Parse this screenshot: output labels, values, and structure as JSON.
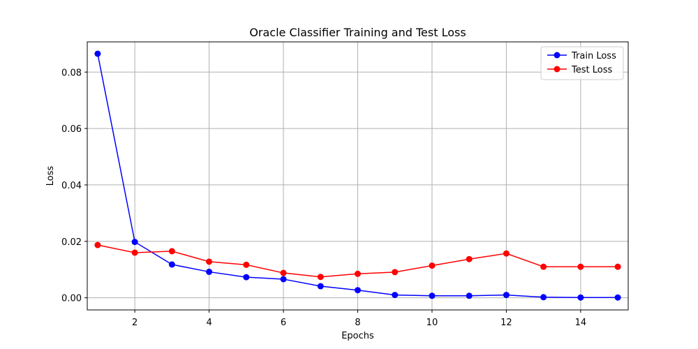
{
  "chart_data": {
    "type": "line",
    "title": "Oracle Classifier Training and Test Loss",
    "xlabel": "Epochs",
    "ylabel": "Loss",
    "x": [
      1,
      2,
      3,
      4,
      5,
      6,
      7,
      8,
      9,
      10,
      11,
      12,
      13,
      14,
      15
    ],
    "xlim": [
      0.72,
      15.28
    ],
    "ylim": [
      -0.0043,
      0.0907
    ],
    "xticks": [
      2,
      4,
      6,
      8,
      10,
      12,
      14
    ],
    "xtick_labels": [
      "2",
      "4",
      "6",
      "8",
      "10",
      "12",
      "14"
    ],
    "yticks": [
      0.0,
      0.02,
      0.04,
      0.06,
      0.08
    ],
    "ytick_labels": [
      "0.00",
      "0.02",
      "0.04",
      "0.06",
      "0.08"
    ],
    "grid": true,
    "legend_position": "top-right",
    "series": [
      {
        "name": "Train Loss",
        "color": "#0000ff",
        "marker": "circle",
        "values": [
          0.0865,
          0.0198,
          0.0118,
          0.0092,
          0.0073,
          0.0066,
          0.0041,
          0.0027,
          0.001,
          0.0007,
          0.0007,
          0.001,
          0.0002,
          0.0001,
          0.0001
        ]
      },
      {
        "name": "Test Loss",
        "color": "#ff0000",
        "marker": "circle",
        "values": [
          0.0187,
          0.016,
          0.0165,
          0.0128,
          0.0117,
          0.0088,
          0.0074,
          0.0085,
          0.0091,
          0.0114,
          0.0137,
          0.0157,
          0.011,
          0.011,
          0.011
        ]
      }
    ]
  }
}
